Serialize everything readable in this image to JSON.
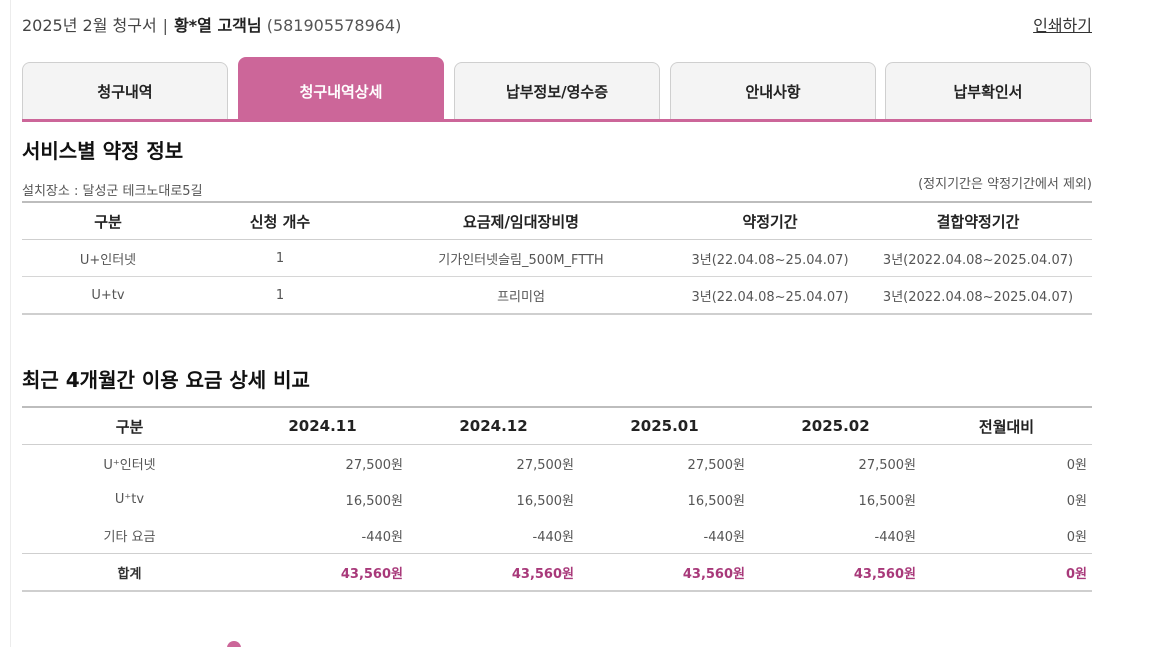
{
  "header": {
    "bill_title": "2025년 2월 청구서",
    "separator": "|",
    "customer_name": "황*열 고객님",
    "customer_number": "(581905578964)",
    "print_label": "인쇄하기"
  },
  "tabs": [
    {
      "label": "청구내역",
      "active": false
    },
    {
      "label": "청구내역상세",
      "active": true
    },
    {
      "label": "납부정보/영수증",
      "active": false
    },
    {
      "label": "안내사항",
      "active": false
    },
    {
      "label": "납부확인서",
      "active": false
    }
  ],
  "contract": {
    "title": "서비스별 약정 정보",
    "install_location": "설치장소 : 달성군 테크노대로5길",
    "note": "(정지기간은 약정기간에서 제외)",
    "columns": [
      "구분",
      "신청 개수",
      "요금제/임대장비명",
      "약정기간",
      "결합약정기간"
    ],
    "rows": [
      [
        "U+인터넷",
        "1",
        "기가인터넷슬림_500M_FTTH",
        "3년(22.04.08~25.04.07)",
        "3년(2022.04.08~2025.04.07)"
      ],
      [
        "U+tv",
        "1",
        "프리미엄",
        "3년(22.04.08~25.04.07)",
        "3년(2022.04.08~2025.04.07)"
      ]
    ]
  },
  "comparison": {
    "title": "최근 4개월간 이용 요금 상세 비교",
    "columns": [
      "구분",
      "2024.11",
      "2024.12",
      "2025.01",
      "2025.02",
      "전월대비"
    ],
    "rows": [
      [
        "U⁺인터넷",
        "27,500원",
        "27,500원",
        "27,500원",
        "27,500원",
        "0원"
      ],
      [
        "U⁺tv",
        "16,500원",
        "16,500원",
        "16,500원",
        "16,500원",
        "0원"
      ],
      [
        "기타 요금",
        "-440원",
        "-440원",
        "-440원",
        "-440원",
        "0원"
      ]
    ],
    "total": [
      "합계",
      "43,560원",
      "43,560원",
      "43,560원",
      "43,560원",
      "0원"
    ]
  },
  "colors": {
    "accent": "#cc6699",
    "total_text": "#a8397a"
  }
}
